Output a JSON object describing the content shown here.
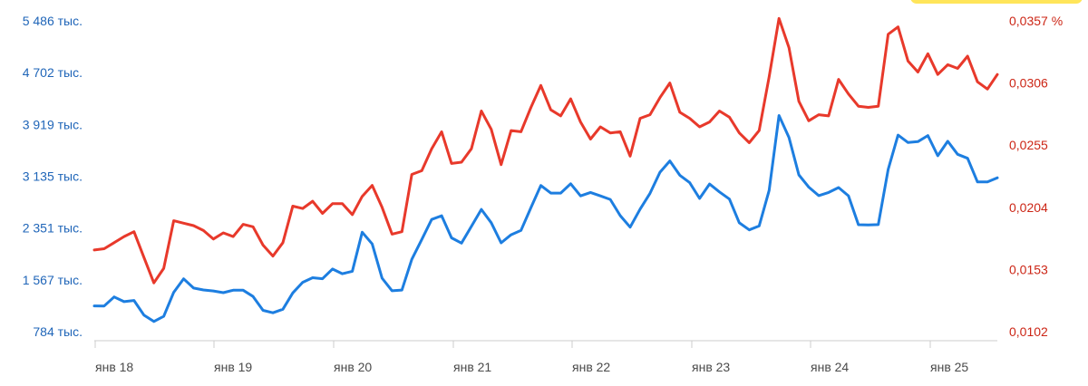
{
  "colors": {
    "left_series": "#1d7ee0",
    "right_series": "#e8392b",
    "left_axis_text": "#1f65b8",
    "right_axis_text": "#cc2616",
    "axis": "#cccccc",
    "badge": "#ffe55a"
  },
  "chart_data": {
    "type": "line",
    "grid": false,
    "x": {
      "tick_labels": [
        "янв 18",
        "янв 19",
        "янв 20",
        "янв 21",
        "янв 22",
        "янв 23",
        "янв 24",
        "янв 25"
      ]
    },
    "y_left": {
      "tick_labels": [
        "5 486 тыс.",
        "4 702 тыс.",
        "3 919 тыс.",
        "3 135 тыс.",
        "2 351 тыс.",
        "1 567 тыс.",
        "784 тыс."
      ],
      "range": [
        784,
        5486
      ],
      "unit": "тыс."
    },
    "y_right": {
      "tick_labels": [
        "0,0357 %",
        "0,0306",
        "0,0255",
        "0,0204",
        "0,0153",
        "0,0102"
      ],
      "range": [
        0.0102,
        0.0357
      ]
    },
    "series": [
      {
        "axis": "left",
        "color": "#1d7ee0",
        "values": [
          1174,
          1172,
          1309,
          1238,
          1255,
          1035,
          938,
          1015,
          1379,
          1583,
          1444,
          1415,
          1399,
          1374,
          1411,
          1411,
          1316,
          1106,
          1069,
          1123,
          1369,
          1530,
          1600,
          1585,
          1731,
          1660,
          1697,
          2288,
          2111,
          1593,
          1402,
          1413,
          1878,
          2178,
          2481,
          2537,
          2203,
          2124,
          2376,
          2633,
          2432,
          2127,
          2250,
          2315,
          2661,
          2995,
          2880,
          2880,
          3021,
          2838,
          2890,
          2837,
          2784,
          2539,
          2364,
          2637,
          2876,
          3195,
          3367,
          3150,
          3037,
          2799,
          3017,
          2898,
          2789,
          2430,
          2324,
          2383,
          2920,
          4054,
          3722,
          3155,
          2970,
          2842,
          2889,
          2963,
          2839,
          2402,
          2397,
          2403,
          3238,
          3757,
          3645,
          3659,
          3751,
          3445,
          3664,
          3467,
          3406,
          3048,
          3048,
          3112
        ]
      },
      {
        "axis": "right",
        "color": "#e8392b",
        "values": [
          0.0169,
          0.017,
          0.0175,
          0.018,
          0.0184,
          0.0163,
          0.0142,
          0.0154,
          0.0193,
          0.0191,
          0.0189,
          0.0185,
          0.0178,
          0.0183,
          0.018,
          0.019,
          0.0188,
          0.0173,
          0.0164,
          0.0175,
          0.0205,
          0.0203,
          0.0209,
          0.0199,
          0.0207,
          0.0207,
          0.0198,
          0.0213,
          0.0222,
          0.0204,
          0.0182,
          0.0184,
          0.0231,
          0.0234,
          0.0252,
          0.0266,
          0.024,
          0.0241,
          0.0252,
          0.0283,
          0.0268,
          0.0239,
          0.0267,
          0.0266,
          0.0286,
          0.0304,
          0.0284,
          0.0279,
          0.0293,
          0.0274,
          0.026,
          0.027,
          0.0265,
          0.0266,
          0.0246,
          0.0277,
          0.028,
          0.0294,
          0.0306,
          0.0282,
          0.0277,
          0.027,
          0.0274,
          0.0283,
          0.0278,
          0.0265,
          0.0257,
          0.0267,
          0.0311,
          0.0359,
          0.0335,
          0.0291,
          0.0275,
          0.028,
          0.0279,
          0.0309,
          0.0297,
          0.0287,
          0.0286,
          0.0287,
          0.0346,
          0.0352,
          0.0324,
          0.0315,
          0.033,
          0.0313,
          0.0321,
          0.0318,
          0.0328,
          0.0307,
          0.0301,
          0.0313
        ]
      }
    ]
  }
}
